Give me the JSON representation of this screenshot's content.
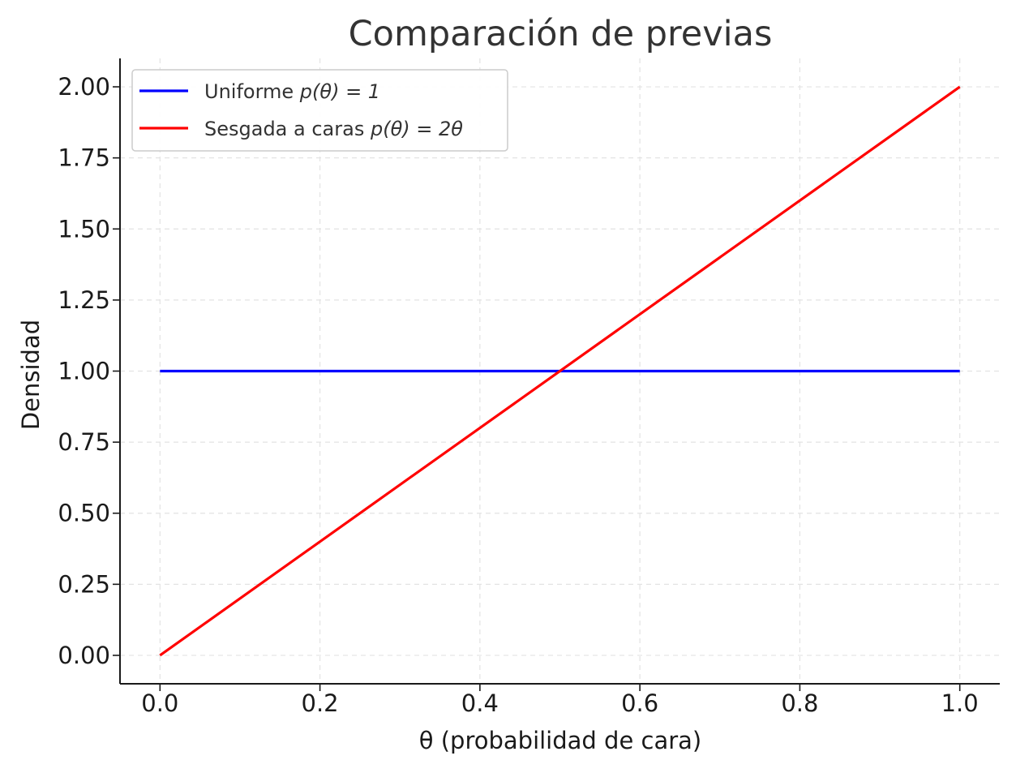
{
  "chart_data": {
    "type": "line",
    "title": "Comparación de previas",
    "xlabel": "θ (probabilidad de cara)",
    "ylabel": "Densidad",
    "xlim": [
      -0.05,
      1.05
    ],
    "ylim": [
      -0.1,
      2.1
    ],
    "grid": true,
    "legend_position": "top-left",
    "x_ticks": [
      0.0,
      0.2,
      0.4,
      0.6,
      0.8,
      1.0
    ],
    "x_tick_labels": [
      "0.0",
      "0.2",
      "0.4",
      "0.6",
      "0.8",
      "1.0"
    ],
    "y_ticks": [
      0.0,
      0.25,
      0.5,
      0.75,
      1.0,
      1.25,
      1.5,
      1.75,
      2.0
    ],
    "y_tick_labels": [
      "0.00",
      "0.25",
      "0.50",
      "0.75",
      "1.00",
      "1.25",
      "1.50",
      "1.75",
      "2.00"
    ],
    "series": [
      {
        "name": "Uniforme p(θ) = 1",
        "legend_text": "Uniforme ",
        "legend_math": "p(θ) = 1",
        "color": "#0000ff",
        "x": [
          0.0,
          1.0
        ],
        "y": [
          1.0,
          1.0
        ]
      },
      {
        "name": "Sesgada a caras p(θ) = 2θ",
        "legend_text": "Sesgada a caras ",
        "legend_math": "p(θ) = 2θ",
        "color": "#ff0000",
        "x": [
          0.0,
          1.0
        ],
        "y": [
          0.0,
          2.0
        ]
      }
    ]
  }
}
